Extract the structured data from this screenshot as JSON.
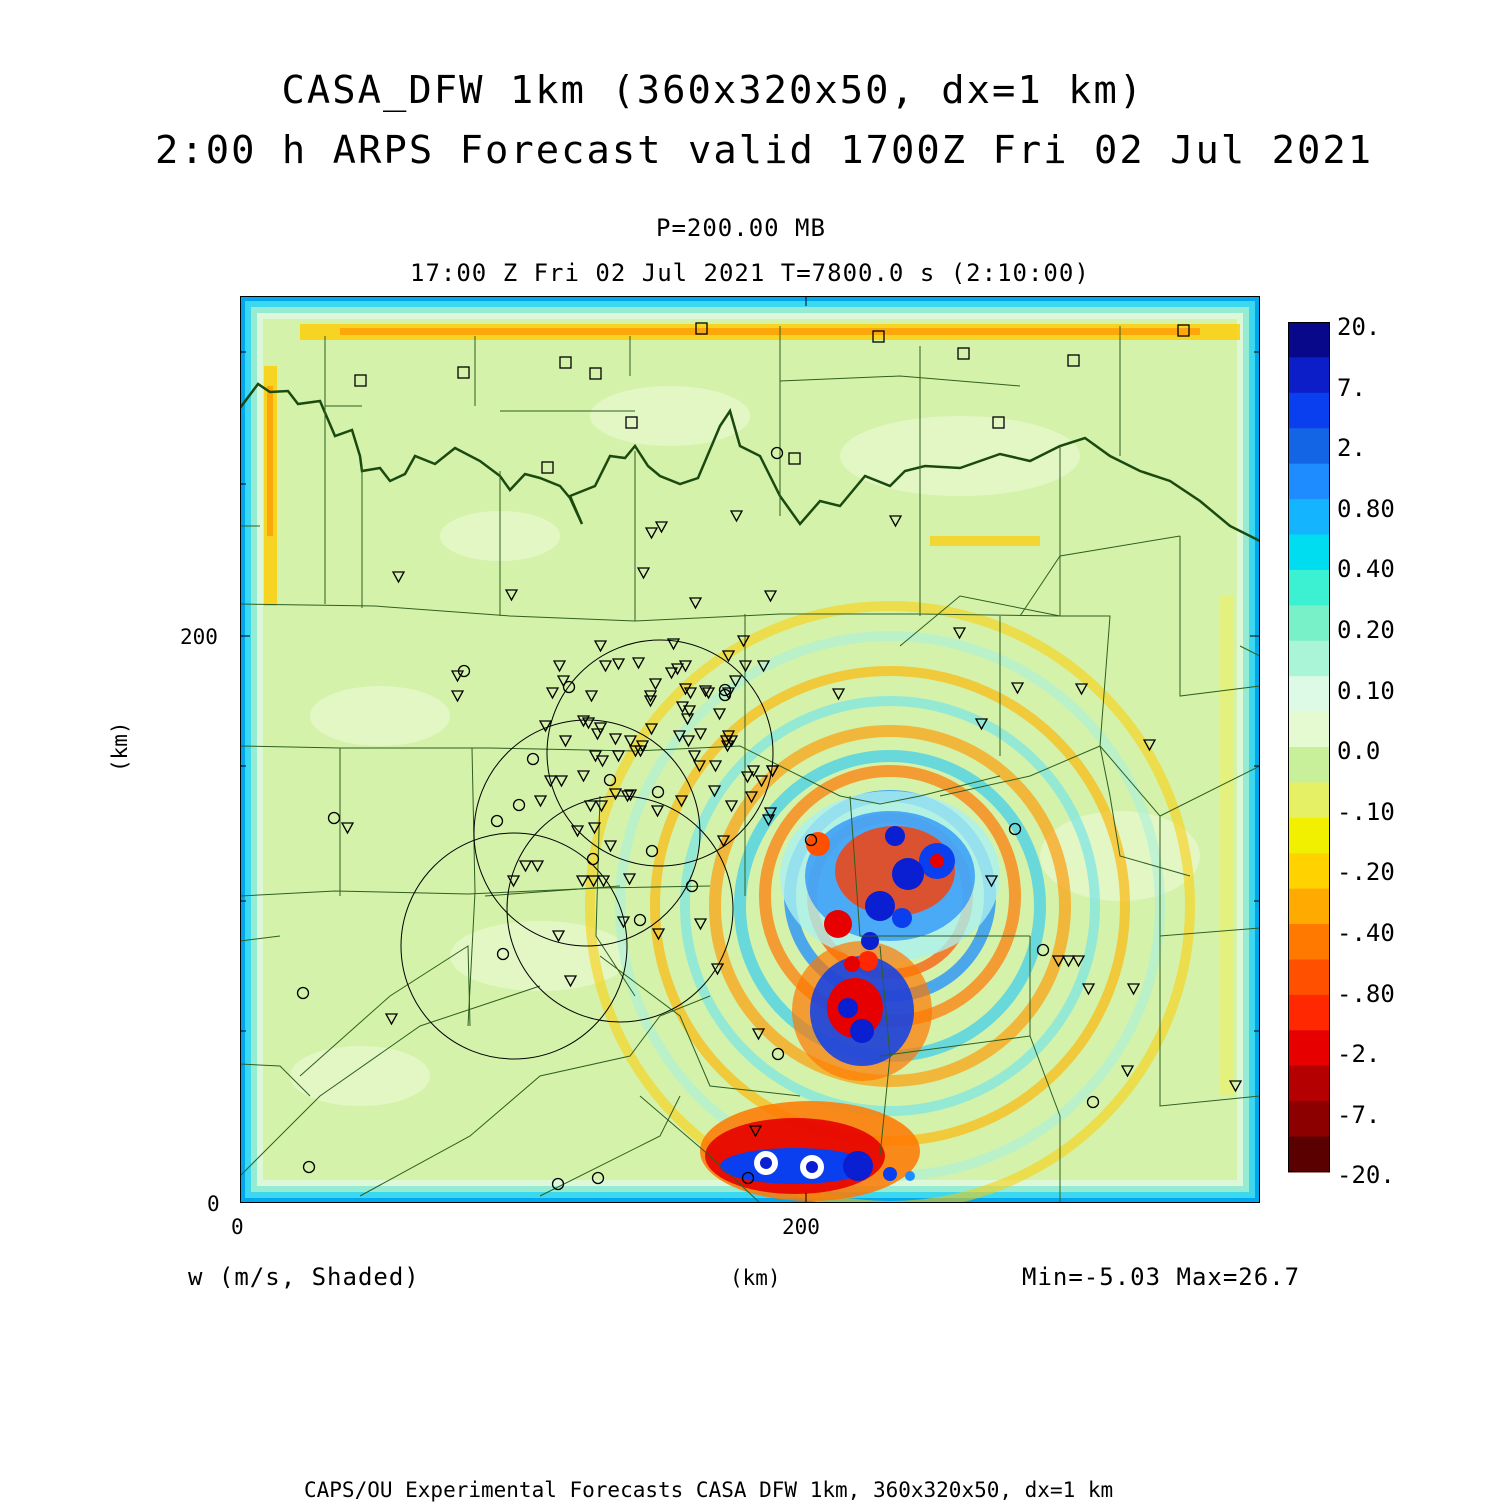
{
  "title_line1": "CASA_DFW 1km (360x320x50, dx=1 km)",
  "title_line2": "2:00 h ARPS Forecast valid 1700Z Fri 02 Jul 2021",
  "level_label": "P=200.00 MB",
  "time_label": "17:00 Z Fri 02 Jul 2021    T=7800.0 s (2:10:00)",
  "x_axis": {
    "label": "(km)",
    "ticks": [
      "0",
      "200"
    ]
  },
  "y_axis": {
    "label": "(km)",
    "ticks": [
      "0",
      "200"
    ]
  },
  "field_label": "w (m/s, Shaded)",
  "min_max_label": "Min=-5.03 Max=26.7",
  "footer": "CAPS/OU Experimental Forecasts  CASA DFW 1km, 360x320x50, dx=1 km",
  "colorbar": {
    "labels": [
      "20.",
      "7.",
      "2.",
      "0.80",
      "0.40",
      "0.20",
      "0.10",
      "0.0",
      "-.10",
      "-.20",
      "-.40",
      "-.80",
      "-2.",
      "-7.",
      "-20."
    ],
    "colors": [
      "#08088a",
      "#0c1ec8",
      "#0a3ff0",
      "#1464e6",
      "#1e8cff",
      "#14b4ff",
      "#00dcf0",
      "#3cf0d2",
      "#78f0c8",
      "#aaf5d7",
      "#dcfae6",
      "#e6fad2",
      "#c8f09a",
      "#e6f064",
      "#f0f000",
      "#ffd200",
      "#ffaa00",
      "#ff7800",
      "#ff5000",
      "#ff2800",
      "#e60000",
      "#b40000",
      "#8c0000",
      "#5a0000"
    ]
  },
  "field_colors": {
    "background": "#d4f2aa",
    "edge": "#00a8f0",
    "positive_strong": "#0a1ed2",
    "positive_light": "#96f0d2",
    "negative_strong": "#e60a00",
    "negative_light": "#ffaa00",
    "boundary_lines": "#1a4a10",
    "station_markers": "#000000"
  }
}
